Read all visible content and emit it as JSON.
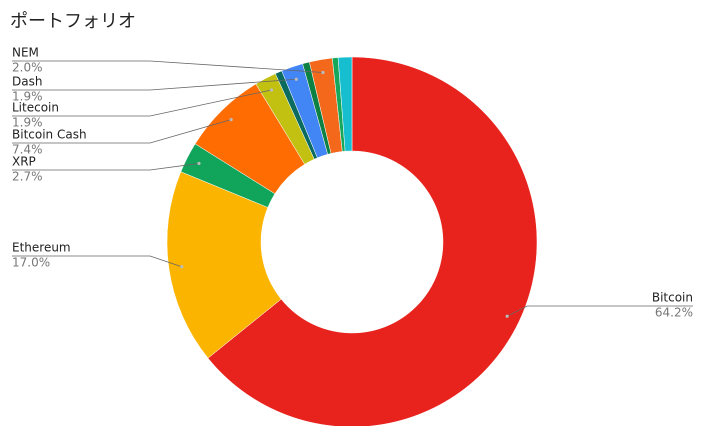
{
  "chart_data": {
    "type": "donut",
    "title": "ポートフォリオ",
    "categories": [
      "Bitcoin",
      "Ethereum",
      "XRP",
      "Bitcoin Cash",
      "Litecoin",
      null,
      "Dash",
      null,
      "NEM",
      null,
      null
    ],
    "values": [
      64.2,
      17.0,
      2.7,
      7.4,
      1.9,
      0.6,
      1.9,
      0.6,
      2.0,
      0.5,
      1.2
    ],
    "value_labels": [
      "64.2%",
      "17.0%",
      "2.7%",
      "7.4%",
      "1.9%",
      null,
      "1.9%",
      null,
      "2.0%",
      null,
      null
    ],
    "colors": [
      "#e8231d",
      "#fbb400",
      "#10a55a",
      "#ff6d02",
      "#c2c011",
      "#0b6b5f",
      "#4285f4",
      "#0d8043",
      "#f4681c",
      "#16a85a",
      "#17becf"
    ]
  }
}
